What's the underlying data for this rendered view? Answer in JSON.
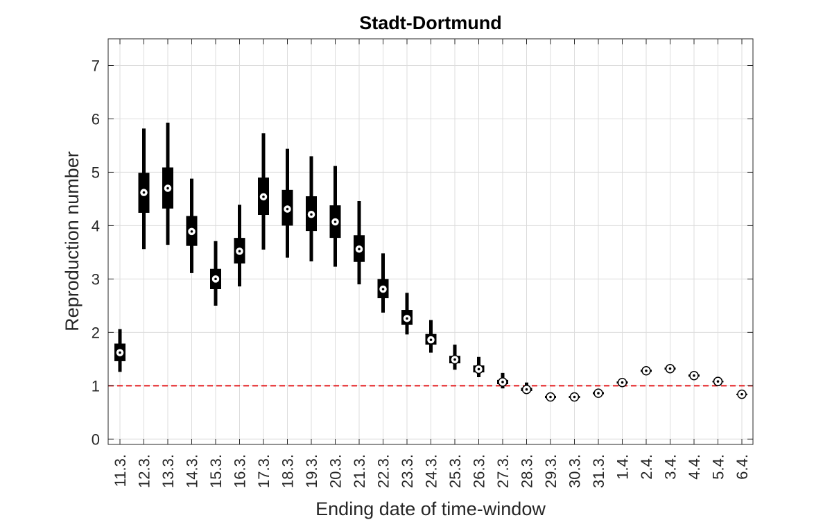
{
  "chart_data": {
    "type": "box",
    "title": "Stadt-Dortmund",
    "xlabel": "Ending date of time-window",
    "ylabel": "Reproduction number",
    "ylim": [
      -0.1,
      7.5
    ],
    "yticks": [
      0,
      1,
      2,
      3,
      4,
      5,
      6,
      7
    ],
    "grid": true,
    "reference_line": {
      "y": 1,
      "color": "#e41a1c",
      "style": "dashed"
    },
    "categories": [
      "11.3.",
      "12.3.",
      "13.3.",
      "14.3.",
      "15.3.",
      "16.3.",
      "17.3.",
      "18.3.",
      "19.3.",
      "20.3.",
      "21.3.",
      "22.3.",
      "23.3.",
      "24.3.",
      "25.3.",
      "26.3.",
      "27.3.",
      "28.3.",
      "29.3.",
      "30.3.",
      "31.3.",
      "1.4.",
      "2.4.",
      "3.4.",
      "4.4.",
      "5.4.",
      "6.4."
    ],
    "series": [
      {
        "median": [
          1.62,
          4.62,
          4.7,
          3.89,
          3.0,
          3.52,
          4.54,
          4.31,
          4.21,
          4.07,
          3.56,
          2.81,
          2.26,
          1.86,
          1.49,
          1.31,
          1.07,
          0.93,
          0.79,
          0.79,
          0.86,
          1.06,
          1.28,
          1.32,
          1.19,
          1.08,
          0.84
        ],
        "q1": [
          1.46,
          4.24,
          4.32,
          3.62,
          2.81,
          3.29,
          4.2,
          4.0,
          3.9,
          3.77,
          3.32,
          2.64,
          2.14,
          1.77,
          1.42,
          1.25,
          1.03,
          0.9,
          0.77,
          0.77,
          0.84,
          1.04,
          1.26,
          1.3,
          1.17,
          1.07,
          0.83
        ],
        "q3": [
          1.79,
          4.99,
          5.09,
          4.18,
          3.19,
          3.77,
          4.9,
          4.67,
          4.55,
          4.38,
          3.82,
          3.0,
          2.42,
          1.97,
          1.56,
          1.38,
          1.11,
          0.96,
          0.81,
          0.81,
          0.88,
          1.08,
          1.3,
          1.34,
          1.21,
          1.09,
          0.85
        ],
        "whisker_low": [
          1.26,
          3.56,
          3.64,
          3.11,
          2.5,
          2.86,
          3.55,
          3.4,
          3.33,
          3.23,
          2.9,
          2.37,
          1.96,
          1.62,
          1.3,
          1.16,
          0.95,
          0.85,
          0.74,
          0.74,
          0.81,
          1.01,
          1.22,
          1.27,
          1.14,
          1.04,
          0.81
        ],
        "whisker_high": [
          2.06,
          5.82,
          5.93,
          4.88,
          3.71,
          4.39,
          5.73,
          5.44,
          5.3,
          5.12,
          4.46,
          3.48,
          2.74,
          2.23,
          1.77,
          1.54,
          1.24,
          1.06,
          0.86,
          0.86,
          0.93,
          1.13,
          1.36,
          1.4,
          1.26,
          1.13,
          0.88
        ]
      }
    ]
  }
}
